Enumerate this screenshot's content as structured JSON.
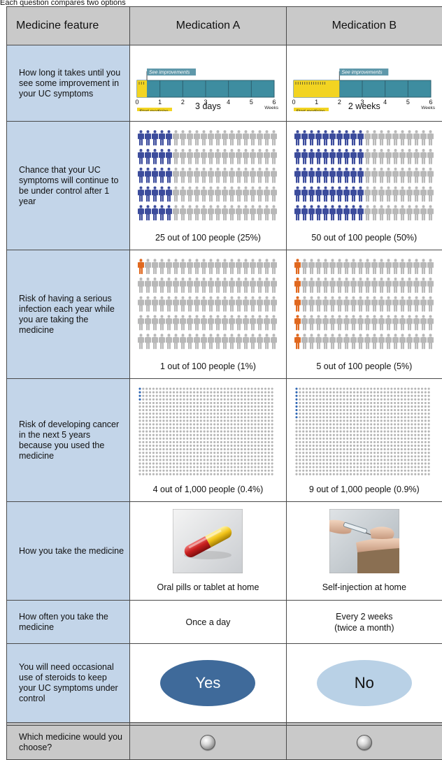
{
  "top_text": "Each question compares two options",
  "header": {
    "feature": "Medicine feature",
    "med_a": "Medication A",
    "med_b": "Medication B"
  },
  "colors": {
    "label_bg": "#c3d5e9",
    "header_bg": "#c9c9c9",
    "timeline_teal": "#3e8da0",
    "timeline_yellow": "#f2d422",
    "person_blue": "#3c4c9c",
    "person_gray": "#b8b8b8",
    "person_orange": "#e0681f",
    "dot_blue": "#2f66b3",
    "dot_gray": "#b5b5b5",
    "yes_oval": "#3f6a9a",
    "no_oval": "#b9d1e6"
  },
  "rows": {
    "time": {
      "label": "How long it takes until you see some improvement in your UC symptoms",
      "flag_text": "See improvements",
      "start_text": "Start medicine",
      "weeks_text": "Weeks",
      "ticks": [
        "0",
        "1",
        "2",
        "3",
        "4",
        "5",
        "6"
      ],
      "a_weeks": 0.43,
      "b_weeks": 2,
      "a_caption": "3 days",
      "b_caption": "2 weeks"
    },
    "control": {
      "label": "Chance that your UC symptoms will continue to be under control after 1 year",
      "a_count": 25,
      "b_count": 50,
      "a_caption": "25 out of 100 people (25%)",
      "b_caption": "50 out of 100 people (50%)"
    },
    "infection": {
      "label": "Risk of having a serious infection each year while you are taking the medicine",
      "a_count": 1,
      "b_count": 5,
      "a_caption": "1 out of 100 people (1%)",
      "b_caption": "5 out of 100 people (5%)"
    },
    "cancer": {
      "label": "Risk of developing cancer in the next 5 years because you used the medicine",
      "a_count": 4,
      "b_count": 9,
      "a_caption": "4 out of 1,000 people (0.4%)",
      "b_caption": "9 out of 1,000 people (0.9%)"
    },
    "how": {
      "label": "How you take the medicine",
      "a_caption": "Oral pills or tablet at home",
      "b_caption": "Self-injection at home"
    },
    "often": {
      "label": "How often you take the medicine",
      "a_value": "Once a day",
      "b_value_line1": "Every 2 weeks",
      "b_value_line2": "(twice a month)"
    },
    "steroids": {
      "label": "You will need occasional use of steroids to keep your UC symptoms under control",
      "a_value": "Yes",
      "b_value": "No"
    },
    "choose": {
      "label": "Which medicine would you choose?"
    }
  }
}
